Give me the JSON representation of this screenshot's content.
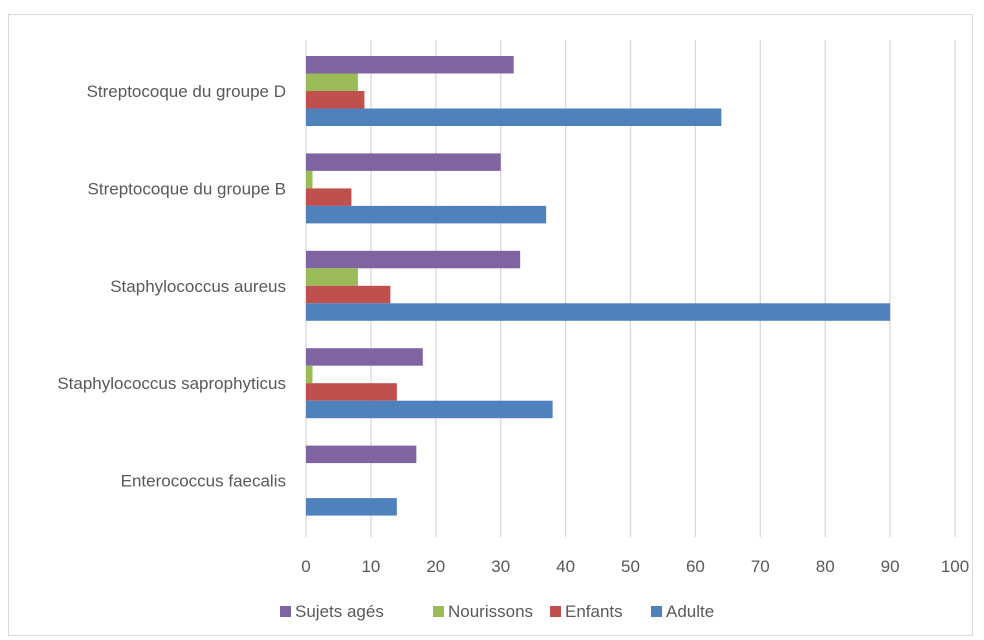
{
  "chart_data": {
    "type": "bar",
    "orientation": "horizontal",
    "title": "",
    "xlabel": "",
    "ylabel": "",
    "categories": [
      "Streptocoque du groupe D",
      "Streptocoque du groupe B",
      "Staphylococcus aureus",
      "Staphylococcus saprophyticus",
      "Enterococcus faecalis"
    ],
    "series": [
      {
        "name": "Sujets agés",
        "color": "#8064a2",
        "values": [
          32,
          30,
          33,
          18,
          17
        ]
      },
      {
        "name": "Nourissons",
        "color": "#9bbb59",
        "values": [
          8,
          1,
          8,
          1,
          0
        ]
      },
      {
        "name": "Enfants",
        "color": "#c0504d",
        "values": [
          9,
          7,
          13,
          14,
          0
        ]
      },
      {
        "name": "Adulte",
        "color": "#4f81bd",
        "values": [
          64,
          37,
          90,
          38,
          14
        ]
      }
    ],
    "xlim": [
      0,
      100
    ],
    "xticks": [
      "0",
      "10",
      "20",
      "30",
      "40",
      "50",
      "60",
      "70",
      "80",
      "90",
      "100"
    ],
    "grid": "vertical",
    "legend_position": "bottom"
  }
}
